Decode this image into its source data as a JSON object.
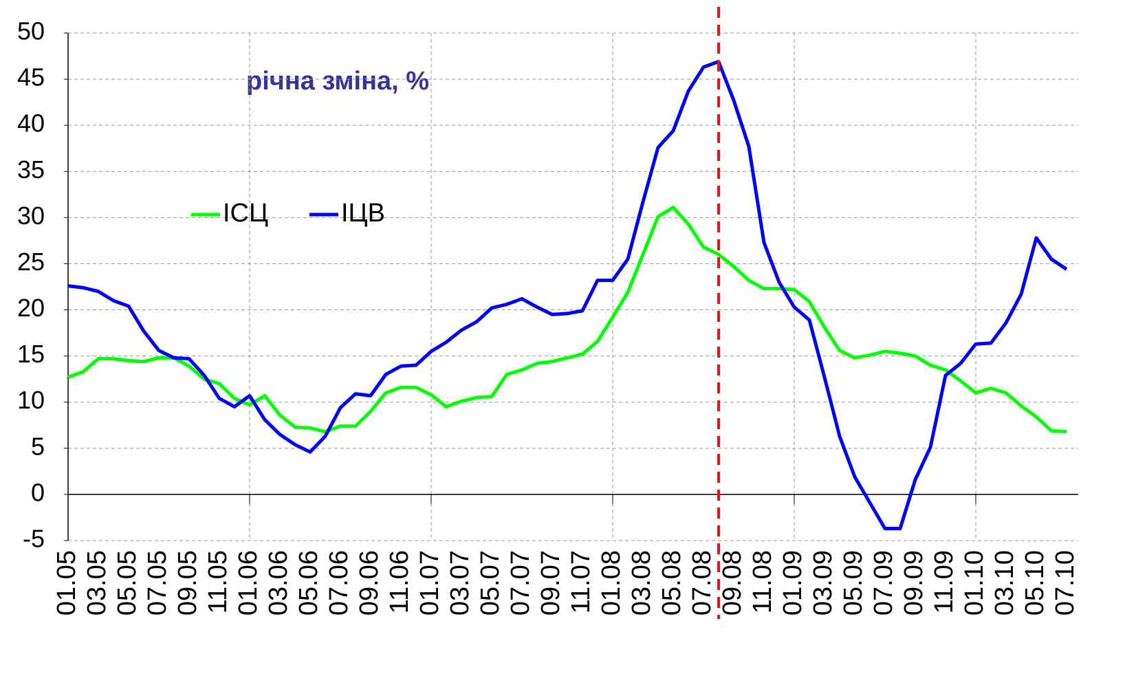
{
  "chart_data": {
    "type": "line",
    "annotation": "річна зміна, %",
    "categories": [
      "01.05",
      null,
      "03.05",
      null,
      "05.05",
      null,
      "07.05",
      null,
      "09.05",
      null,
      "11.05",
      null,
      "01.06",
      null,
      "03.06",
      null,
      "05.06",
      null,
      "07.06",
      null,
      "09.06",
      null,
      "11.06",
      null,
      "01.07",
      null,
      "03.07",
      null,
      "05.07",
      null,
      "07.07",
      null,
      "09.07",
      null,
      "11.07",
      null,
      "01.08",
      null,
      "03.08",
      null,
      "05.08",
      null,
      "07.08",
      null,
      "09.08",
      null,
      "11.08",
      null,
      "01.09",
      null,
      "03.09",
      null,
      "05.09",
      null,
      "07.09",
      null,
      "09.09",
      null,
      "11.09",
      null,
      "01.10",
      null,
      "03.10",
      null,
      "05.10",
      null,
      "07.10"
    ],
    "series": [
      {
        "name": "ІСЦ",
        "color": "#00ff00",
        "values": [
          12.7,
          13.3,
          14.7,
          14.7,
          14.5,
          14.4,
          14.8,
          14.8,
          13.9,
          12.5,
          12.0,
          10.4,
          9.7,
          10.7,
          8.6,
          7.3,
          7.2,
          6.8,
          7.4,
          7.4,
          9.0,
          11.0,
          11.6,
          11.6,
          10.8,
          9.5,
          10.1,
          10.5,
          10.6,
          13.0,
          13.5,
          14.2,
          14.4,
          14.8,
          15.2,
          16.6,
          19.2,
          21.9,
          26.0,
          30.1,
          31.1,
          29.3,
          26.8,
          26.0,
          24.7,
          23.2,
          22.3,
          22.3,
          22.2,
          20.9,
          18.1,
          15.6,
          14.8,
          15.1,
          15.5,
          15.3,
          15.0,
          14.0,
          13.5,
          12.3,
          11.0,
          11.5,
          11.0,
          9.6,
          8.4,
          6.9,
          6.8
        ]
      },
      {
        "name": "ІЦВ",
        "color": "#0000ff",
        "values": [
          22.6,
          22.4,
          22.0,
          21.0,
          20.4,
          17.7,
          15.6,
          14.8,
          14.7,
          12.9,
          10.4,
          9.5,
          10.7,
          8.1,
          6.5,
          5.4,
          4.6,
          6.3,
          9.4,
          10.9,
          10.7,
          13.0,
          13.9,
          14.0,
          15.5,
          16.5,
          17.8,
          18.7,
          20.2,
          20.6,
          21.2,
          20.3,
          19.5,
          19.6,
          19.9,
          23.2,
          23.2,
          25.5,
          31.7,
          37.6,
          39.4,
          43.7,
          46.3,
          46.9,
          42.7,
          37.7,
          27.3,
          23.0,
          20.3,
          18.9,
          12.7,
          6.3,
          1.9,
          -0.9,
          -3.7,
          -3.7,
          1.6,
          5.1,
          12.9,
          14.2,
          16.3,
          16.4,
          18.6,
          21.7,
          27.8,
          25.5,
          24.4
        ]
      }
    ],
    "ylim": [
      -5,
      50
    ],
    "yticks": [
      -5,
      0,
      5,
      10,
      15,
      20,
      25,
      30,
      35,
      40,
      45,
      50
    ],
    "grid": true,
    "vline_index": 43,
    "vline_color": "#ee1111"
  }
}
